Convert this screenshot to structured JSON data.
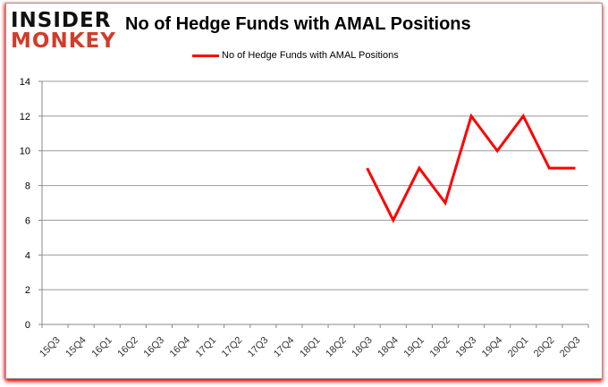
{
  "logo": {
    "line1": "INSIDER",
    "line2": "MONKEY"
  },
  "chart_data": {
    "type": "line",
    "title": "No of Hedge Funds with AMAL Positions",
    "xlabel": "",
    "ylabel": "",
    "categories": [
      "15Q3",
      "15Q4",
      "16Q1",
      "16Q2",
      "16Q3",
      "16Q4",
      "17Q1",
      "17Q2",
      "17Q3",
      "17Q4",
      "18Q1",
      "18Q2",
      "18Q3",
      "18Q4",
      "19Q1",
      "19Q2",
      "19Q3",
      "19Q4",
      "20Q1",
      "20Q2",
      "20Q3"
    ],
    "series": [
      {
        "name": "No of Hedge Funds with AMAL Positions",
        "color": "#ff0000",
        "values": [
          null,
          null,
          null,
          null,
          null,
          null,
          null,
          null,
          null,
          null,
          null,
          null,
          9,
          6,
          9,
          7,
          12,
          10,
          12,
          9,
          9
        ]
      }
    ],
    "ylim": [
      0,
      14
    ],
    "yticks": [
      0,
      2,
      4,
      6,
      8,
      10,
      12,
      14
    ],
    "grid": true,
    "legend": "top-center"
  }
}
